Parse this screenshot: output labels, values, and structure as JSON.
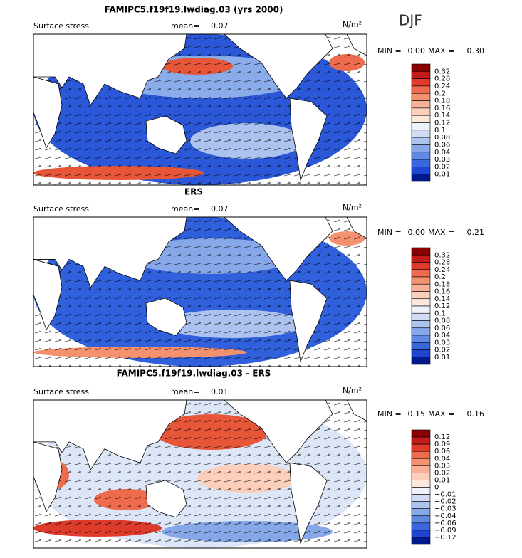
{
  "season": "DJF",
  "panels": [
    {
      "title": "FAMIPC5.f19f19.lwdiag.03 (yrs 2000)",
      "label": "Surface stress",
      "mean_label": "mean=",
      "mean": "0.07",
      "units": "N/m²",
      "min_label": "MIN =",
      "min": "0.00",
      "max_label": "MAX =",
      "max": "0.30",
      "colorbar": {
        "labels": [
          "0.32",
          "0.28",
          "0.24",
          "0.2",
          "0.18",
          "0.16",
          "0.14",
          "0.12",
          "0.1",
          "0.08",
          "0.06",
          "0.04",
          "0.03",
          "0.02",
          "0.01"
        ],
        "colors": [
          "#8b0000",
          "#c41a1a",
          "#de3b2b",
          "#ee6b4d",
          "#f4916f",
          "#f8b196",
          "#fbcfba",
          "#fde8dc",
          "#eef2fa",
          "#cfdcf4",
          "#abc3ee",
          "#86a7e8",
          "#5f89e2",
          "#3a68dc",
          "#1e46d0",
          "#001a8c"
        ]
      }
    },
    {
      "title": "ERS",
      "label": "Surface stress",
      "mean_label": "mean=",
      "mean": "0.07",
      "units": "N/m²",
      "min_label": "MIN =",
      "min": "0.00",
      "max_label": "MAX =",
      "max": "0.21",
      "colorbar": {
        "labels": [
          "0.32",
          "0.28",
          "0.24",
          "0.2",
          "0.18",
          "0.16",
          "0.14",
          "0.12",
          "0.1",
          "0.08",
          "0.06",
          "0.04",
          "0.03",
          "0.02",
          "0.01"
        ],
        "colors": [
          "#8b0000",
          "#c41a1a",
          "#de3b2b",
          "#ee6b4d",
          "#f4916f",
          "#f8b196",
          "#fbcfba",
          "#fde8dc",
          "#eef2fa",
          "#cfdcf4",
          "#abc3ee",
          "#86a7e8",
          "#5f89e2",
          "#3a68dc",
          "#1e46d0",
          "#001a8c"
        ]
      }
    },
    {
      "title": "FAMIPC5.f19f19.lwdiag.03 - ERS",
      "label": "Surface stress",
      "mean_label": "mean=",
      "mean": "0.01",
      "units": "N/m²",
      "min_label": "MIN =",
      "min": "−0.15",
      "max_label": "MAX =",
      "max": "0.16",
      "colorbar": {
        "labels": [
          "0.12",
          "0.09",
          "0.06",
          "0.04",
          "0.03",
          "0.02",
          "0.01",
          "0",
          "−0.01",
          "−0.02",
          "−0.03",
          "−0.04",
          "−0.06",
          "−0.09",
          "−0.12"
        ],
        "colors": [
          "#8b0000",
          "#c41a1a",
          "#de3b2b",
          "#ee6b4d",
          "#f4916f",
          "#f8b196",
          "#fbcfba",
          "#fde8dc",
          "#eef2fa",
          "#cfdcf4",
          "#abc3ee",
          "#86a7e8",
          "#5f89e2",
          "#3a68dc",
          "#1e46d0",
          "#001a8c"
        ]
      }
    }
  ]
}
